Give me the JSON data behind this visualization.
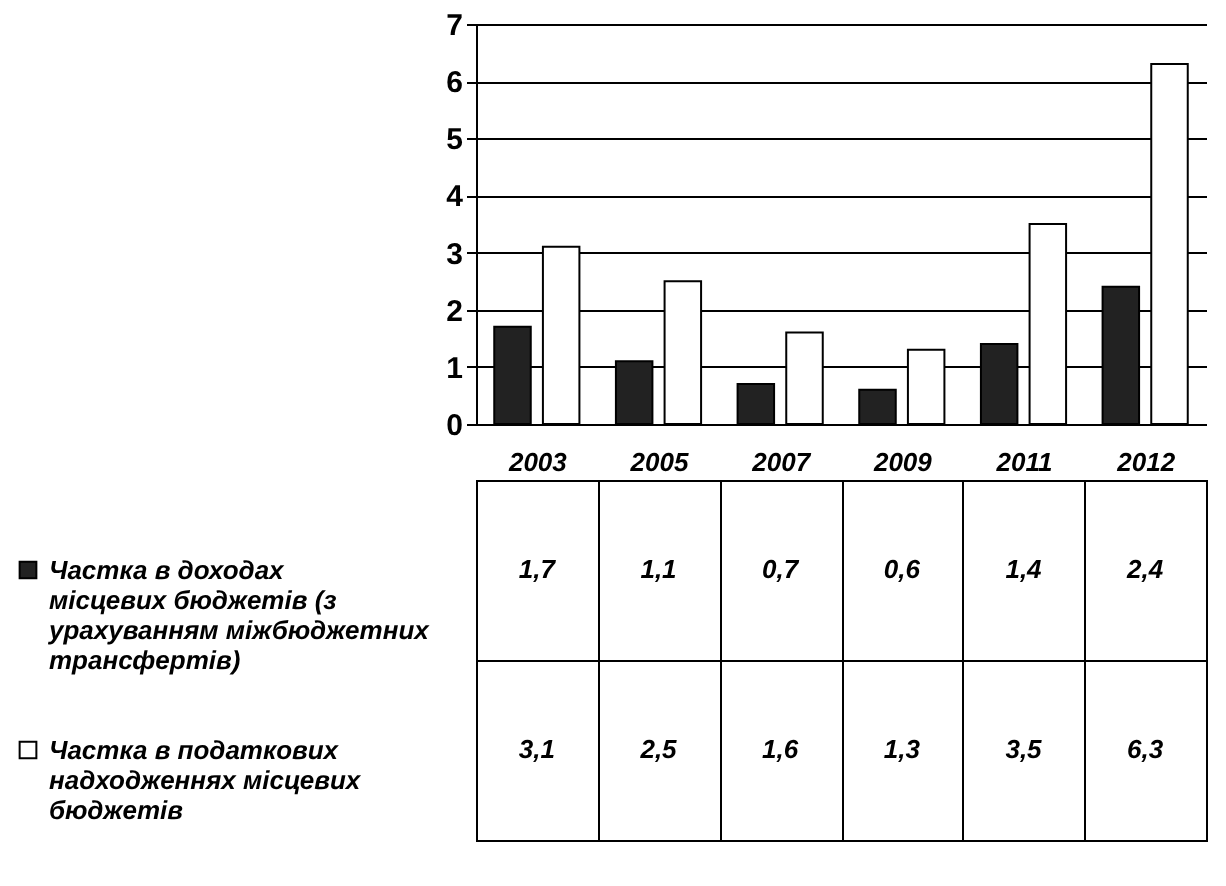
{
  "chart_data": {
    "type": "bar",
    "categories": [
      "2003",
      "2005",
      "2007",
      "2009",
      "2011",
      "2012"
    ],
    "series": [
      {
        "name": "Частка в доходах місцевих бюджетів (з урахуванням міжбюджетних трансфертів)",
        "color": "#222222",
        "values": [
          1.7,
          1.1,
          0.7,
          0.6,
          1.4,
          2.4
        ],
        "value_labels": [
          "1,7",
          "1,1",
          "0,7",
          "0,6",
          "1,4",
          "2,4"
        ]
      },
      {
        "name": "Частка в податкових надходженнях місцевих бюджетів",
        "color": "#ffffff",
        "values": [
          3.1,
          2.5,
          1.6,
          1.3,
          3.5,
          6.3
        ],
        "value_labels": [
          "3,1",
          "2,5",
          "1,6",
          "1,3",
          "3,5",
          "6,3"
        ]
      }
    ],
    "ylim": [
      0,
      7
    ],
    "yticks": [
      0,
      1,
      2,
      3,
      4,
      5,
      6,
      7
    ],
    "grid": "y",
    "legend": "bottom"
  }
}
